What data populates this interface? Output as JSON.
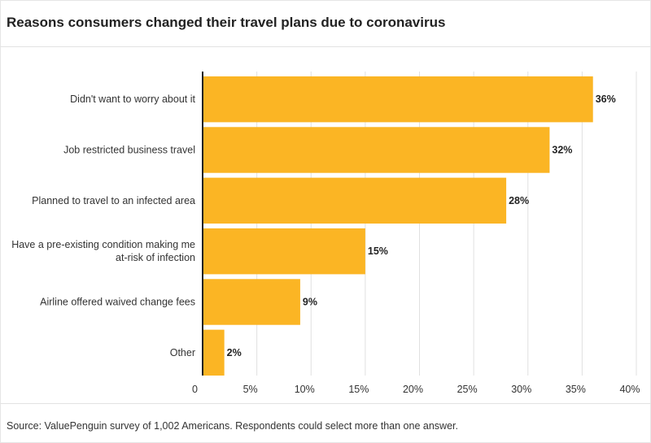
{
  "title": "Reasons consumers changed their travel plans due to coronavirus",
  "source": "Source: ValuePenguin survey of 1,002 Americans. Respondents could select more than one answer.",
  "colors": {
    "bar": "#FBB524",
    "grid": "#e0e0e0",
    "axis": "#222222"
  },
  "chart_data": {
    "type": "bar",
    "orientation": "horizontal",
    "title": "Reasons consumers changed their travel plans due to coronavirus",
    "categories": [
      [
        "Didn't want to worry about it"
      ],
      [
        "Job restricted business travel"
      ],
      [
        "Planned to travel to an infected area"
      ],
      [
        "Have a pre-existing condition making me",
        "at-risk of infection"
      ],
      [
        "Airline offered waived change fees"
      ],
      [
        "Other"
      ]
    ],
    "values": [
      36,
      32,
      28,
      15,
      9,
      2
    ],
    "value_labels": [
      "36%",
      "32%",
      "28%",
      "15%",
      "9%",
      "2%"
    ],
    "xlim": [
      0,
      40
    ],
    "xticks": [
      0,
      5,
      10,
      15,
      20,
      25,
      30,
      35,
      40
    ],
    "xtick_labels": [
      "0",
      "5%",
      "10%",
      "15%",
      "20%",
      "25%",
      "30%",
      "35%",
      "40%"
    ],
    "grid": true,
    "xlabel": "",
    "ylabel": ""
  }
}
